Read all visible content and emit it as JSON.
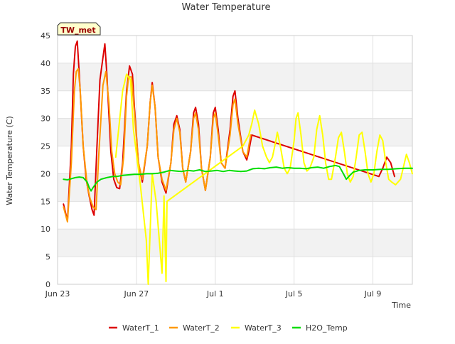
{
  "chart_data": {
    "type": "line",
    "title": "Water Temperature",
    "xlabel": "Time",
    "ylabel": "Water Temperature (C)",
    "site_label": "TW_met",
    "xlim": [
      0,
      18.0
    ],
    "ylim": [
      0,
      45
    ],
    "x_unit": "days since Jun 23",
    "x_ticks": [
      {
        "x": 0,
        "label": "Jun 23"
      },
      {
        "x": 4,
        "label": "Jun 27"
      },
      {
        "x": 8,
        "label": "Jul 1"
      },
      {
        "x": 12,
        "label": "Jul 5"
      },
      {
        "x": 16,
        "label": "Jul 9"
      }
    ],
    "y_ticks": [
      0,
      5,
      10,
      15,
      20,
      25,
      30,
      35,
      40,
      45
    ],
    "legend_position": "bottom",
    "grid": true,
    "series": [
      {
        "name": "WaterT_1",
        "color": "#dd0000",
        "points": [
          [
            0.3,
            14.5
          ],
          [
            0.5,
            11.5
          ],
          [
            0.7,
            25
          ],
          [
            0.8,
            38
          ],
          [
            0.9,
            43
          ],
          [
            1.0,
            44
          ],
          [
            1.1,
            38
          ],
          [
            1.3,
            25
          ],
          [
            1.45,
            19
          ],
          [
            1.6,
            16
          ],
          [
            1.75,
            13.5
          ],
          [
            1.85,
            12.5
          ],
          [
            2.0,
            25
          ],
          [
            2.15,
            37
          ],
          [
            2.3,
            41
          ],
          [
            2.4,
            43.5
          ],
          [
            2.5,
            38
          ],
          [
            2.7,
            24
          ],
          [
            2.85,
            19
          ],
          [
            3.0,
            17.5
          ],
          [
            3.15,
            17.3
          ],
          [
            3.3,
            22
          ],
          [
            3.5,
            35
          ],
          [
            3.65,
            39.5
          ],
          [
            3.8,
            38
          ],
          [
            3.9,
            32
          ],
          [
            4.1,
            22
          ],
          [
            4.3,
            18.5
          ],
          [
            4.55,
            25
          ],
          [
            4.7,
            33
          ],
          [
            4.8,
            36.5
          ],
          [
            4.95,
            32
          ],
          [
            5.1,
            23
          ],
          [
            5.3,
            18.5
          ],
          [
            5.5,
            16.5
          ],
          [
            5.75,
            22
          ],
          [
            5.9,
            29
          ],
          [
            6.05,
            30.5
          ],
          [
            6.2,
            28
          ],
          [
            6.35,
            21
          ],
          [
            6.5,
            18.5
          ],
          [
            6.75,
            24
          ],
          [
            6.9,
            31
          ],
          [
            7.0,
            32
          ],
          [
            7.15,
            29
          ],
          [
            7.3,
            21
          ],
          [
            7.5,
            17
          ],
          [
            7.75,
            23
          ],
          [
            7.9,
            31
          ],
          [
            8.0,
            32
          ],
          [
            8.15,
            28
          ],
          [
            8.3,
            22
          ],
          [
            8.5,
            21
          ],
          [
            8.75,
            28
          ],
          [
            8.9,
            34
          ],
          [
            9.0,
            35
          ],
          [
            9.15,
            30
          ],
          [
            9.4,
            24
          ],
          [
            9.6,
            22.5
          ],
          [
            9.7,
            24
          ],
          [
            9.85,
            27
          ],
          [
            16.3,
            19.5
          ],
          [
            16.5,
            21
          ],
          [
            16.7,
            23
          ],
          [
            16.9,
            22
          ],
          [
            17.1,
            19.5
          ]
        ]
      },
      {
        "name": "WaterT_2",
        "color": "#ff9900",
        "points": [
          [
            0.3,
            14
          ],
          [
            0.5,
            11.3
          ],
          [
            0.7,
            22
          ],
          [
            0.85,
            35
          ],
          [
            0.95,
            38.5
          ],
          [
            1.05,
            39
          ],
          [
            1.15,
            35
          ],
          [
            1.3,
            25
          ],
          [
            1.5,
            18
          ],
          [
            1.65,
            15.5
          ],
          [
            1.8,
            14
          ],
          [
            1.95,
            13.5
          ],
          [
            2.1,
            24
          ],
          [
            2.3,
            36
          ],
          [
            2.45,
            38.5
          ],
          [
            2.6,
            33
          ],
          [
            2.75,
            24
          ],
          [
            2.9,
            20
          ],
          [
            3.05,
            18.5
          ],
          [
            3.2,
            18
          ],
          [
            3.35,
            23
          ],
          [
            3.5,
            34
          ],
          [
            3.6,
            37.5
          ],
          [
            3.75,
            37.5
          ],
          [
            3.9,
            31
          ],
          [
            4.1,
            22
          ],
          [
            4.3,
            19
          ],
          [
            4.55,
            25
          ],
          [
            4.7,
            33
          ],
          [
            4.8,
            36
          ],
          [
            4.95,
            32
          ],
          [
            5.1,
            23
          ],
          [
            5.3,
            19
          ],
          [
            5.5,
            17
          ],
          [
            5.75,
            22
          ],
          [
            5.9,
            28
          ],
          [
            6.05,
            30
          ],
          [
            6.2,
            27.5
          ],
          [
            6.35,
            21
          ],
          [
            6.5,
            18.5
          ],
          [
            6.75,
            24
          ],
          [
            6.9,
            30
          ],
          [
            7.0,
            31
          ],
          [
            7.15,
            28
          ],
          [
            7.3,
            21
          ],
          [
            7.5,
            17
          ],
          [
            7.75,
            23
          ],
          [
            7.9,
            30
          ],
          [
            8.0,
            31
          ],
          [
            8.15,
            27
          ],
          [
            8.3,
            22
          ],
          [
            8.5,
            21
          ],
          [
            8.75,
            27
          ],
          [
            8.9,
            32.5
          ],
          [
            9.0,
            33.5
          ],
          [
            9.15,
            29
          ],
          [
            9.4,
            24
          ],
          [
            9.6,
            23
          ],
          [
            9.8,
            27
          ]
        ]
      },
      {
        "name": "WaterT_3",
        "color": "#ffff00",
        "points": [
          [
            2.95,
            23
          ],
          [
            3.3,
            35
          ],
          [
            3.5,
            38
          ],
          [
            3.7,
            37
          ],
          [
            3.85,
            28
          ],
          [
            4.2,
            18
          ],
          [
            4.5,
            8
          ],
          [
            4.6,
            0
          ],
          [
            4.8,
            20
          ],
          [
            5.0,
            15
          ],
          [
            5.3,
            2
          ],
          [
            5.4,
            16
          ],
          [
            5.5,
            0.5
          ],
          [
            5.55,
            15
          ],
          [
            9.4,
            25
          ],
          [
            9.7,
            27
          ],
          [
            9.85,
            29
          ],
          [
            10.0,
            31.5
          ],
          [
            10.2,
            29
          ],
          [
            10.4,
            25
          ],
          [
            10.6,
            23
          ],
          [
            10.75,
            22
          ],
          [
            10.9,
            23
          ],
          [
            11.05,
            25.5
          ],
          [
            11.15,
            27.5
          ],
          [
            11.3,
            25
          ],
          [
            11.5,
            21
          ],
          [
            11.65,
            20
          ],
          [
            11.8,
            21
          ],
          [
            12.0,
            26
          ],
          [
            12.1,
            30
          ],
          [
            12.2,
            31
          ],
          [
            12.35,
            27
          ],
          [
            12.5,
            22
          ],
          [
            12.65,
            20.5
          ],
          [
            12.8,
            21
          ],
          [
            13.0,
            23
          ],
          [
            13.15,
            28
          ],
          [
            13.3,
            30.5
          ],
          [
            13.45,
            27
          ],
          [
            13.6,
            22
          ],
          [
            13.75,
            19
          ],
          [
            13.9,
            19
          ],
          [
            14.1,
            23
          ],
          [
            14.25,
            26.5
          ],
          [
            14.4,
            27.5
          ],
          [
            14.55,
            24
          ],
          [
            14.7,
            20
          ],
          [
            14.85,
            18.5
          ],
          [
            15.0,
            19.5
          ],
          [
            15.15,
            23
          ],
          [
            15.3,
            27
          ],
          [
            15.45,
            27.5
          ],
          [
            15.6,
            24
          ],
          [
            15.75,
            20
          ],
          [
            15.9,
            18.5
          ],
          [
            16.05,
            20
          ],
          [
            16.2,
            24
          ],
          [
            16.35,
            27
          ],
          [
            16.5,
            26
          ],
          [
            16.65,
            22
          ],
          [
            16.8,
            19
          ],
          [
            16.95,
            18.5
          ],
          [
            17.15,
            18
          ],
          [
            17.4,
            19
          ],
          [
            17.6,
            22
          ],
          [
            17.7,
            23.5
          ],
          [
            17.85,
            22
          ],
          [
            18.0,
            20
          ]
        ]
      },
      {
        "name": "H2O_Temp",
        "color": "#00dd00",
        "points": [
          [
            0.3,
            19
          ],
          [
            0.5,
            18.9
          ],
          [
            0.7,
            19.1
          ],
          [
            0.9,
            19.3
          ],
          [
            1.1,
            19.4
          ],
          [
            1.3,
            19.3
          ],
          [
            1.5,
            18.5
          ],
          [
            1.6,
            17.5
          ],
          [
            1.7,
            16.9
          ],
          [
            1.8,
            17.5
          ],
          [
            2.0,
            18.5
          ],
          [
            2.2,
            19
          ],
          [
            2.5,
            19.3
          ],
          [
            2.8,
            19.5
          ],
          [
            3.0,
            19.5
          ],
          [
            3.3,
            19.7
          ],
          [
            3.6,
            19.8
          ],
          [
            3.9,
            19.9
          ],
          [
            4.2,
            19.9
          ],
          [
            4.5,
            20
          ],
          [
            4.8,
            20
          ],
          [
            5.1,
            20.1
          ],
          [
            5.4,
            20.3
          ],
          [
            5.7,
            20.6
          ],
          [
            6.0,
            20.5
          ],
          [
            6.3,
            20.4
          ],
          [
            6.6,
            20.6
          ],
          [
            6.9,
            20.5
          ],
          [
            7.2,
            20.7
          ],
          [
            7.5,
            20.4
          ],
          [
            7.8,
            20.5
          ],
          [
            8.1,
            20.6
          ],
          [
            8.4,
            20.4
          ],
          [
            8.7,
            20.6
          ],
          [
            9.0,
            20.5
          ],
          [
            9.3,
            20.4
          ],
          [
            9.6,
            20.5
          ],
          [
            9.9,
            20.9
          ],
          [
            10.2,
            21
          ],
          [
            10.5,
            20.9
          ],
          [
            10.8,
            21.1
          ],
          [
            11.1,
            21.2
          ],
          [
            11.4,
            21
          ],
          [
            11.7,
            21.1
          ],
          [
            12.0,
            21
          ],
          [
            12.3,
            21
          ],
          [
            12.6,
            20.9
          ],
          [
            12.9,
            21.1
          ],
          [
            13.2,
            21.2
          ],
          [
            13.5,
            21
          ],
          [
            13.8,
            21.3
          ],
          [
            14.1,
            21.5
          ],
          [
            14.3,
            21.3
          ],
          [
            14.5,
            20
          ],
          [
            14.65,
            19
          ],
          [
            14.8,
            19.6
          ],
          [
            15.0,
            20.3
          ],
          [
            15.3,
            20.6
          ],
          [
            15.6,
            20.7
          ],
          [
            16.0,
            20.7
          ],
          [
            16.4,
            20.8
          ],
          [
            16.8,
            20.8
          ],
          [
            17.2,
            20.9
          ],
          [
            17.6,
            21
          ],
          [
            18.0,
            21
          ]
        ]
      }
    ]
  }
}
